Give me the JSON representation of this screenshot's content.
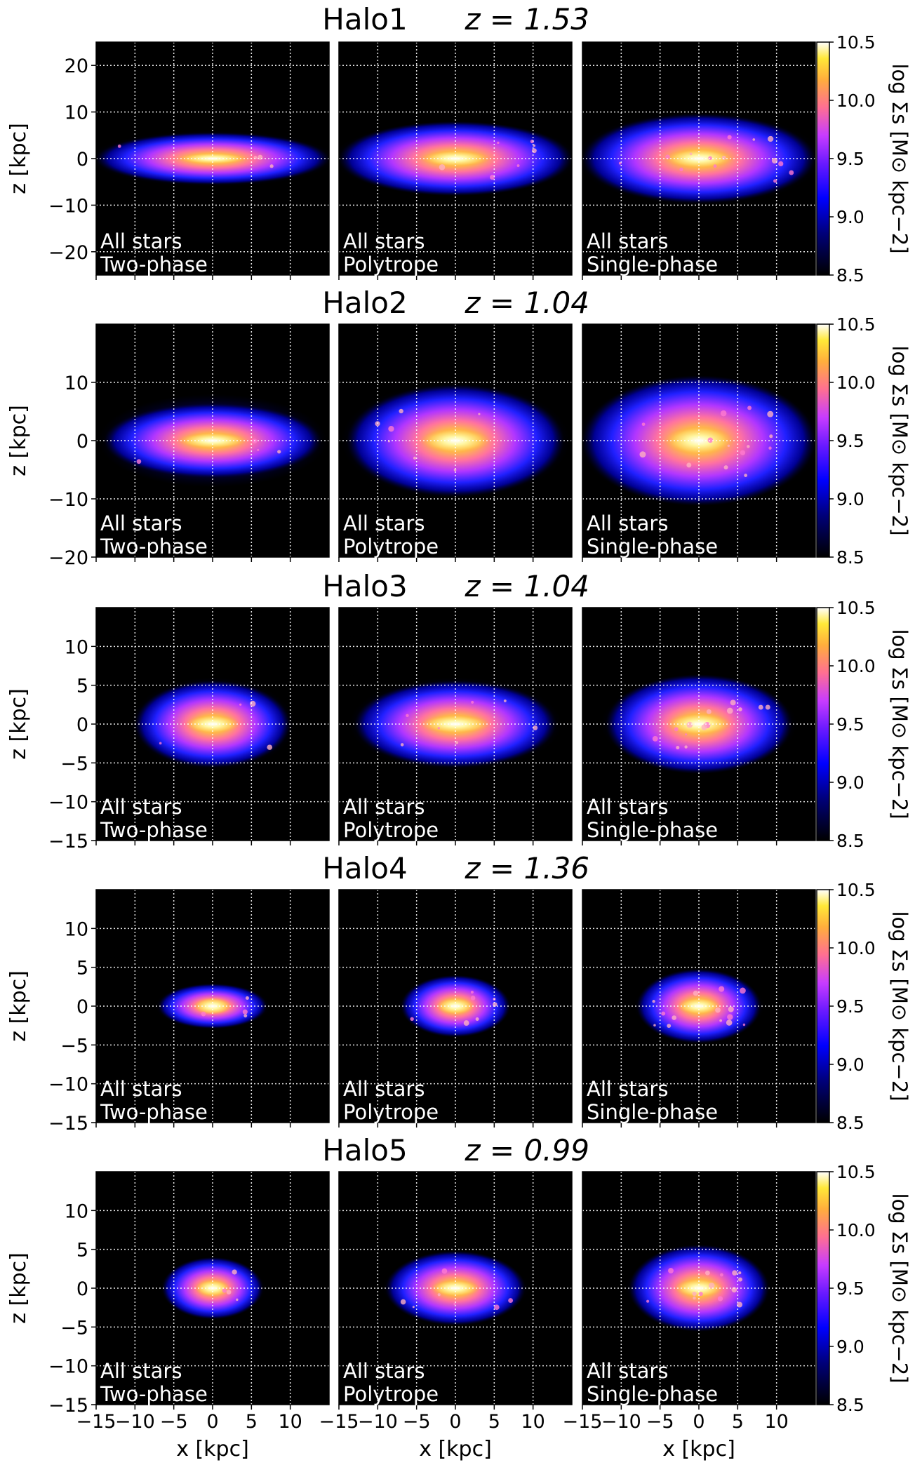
{
  "figure": {
    "colorbar": {
      "label": "log Σs [M⊙ kpc−2]",
      "ticks": [
        "8.5",
        "9.0",
        "9.5",
        "10.0",
        "10.5"
      ],
      "range": [
        8.5,
        10.5
      ],
      "colormap": "gnuplot2"
    },
    "panel_labels": {
      "line1": "All stars",
      "line2": [
        "Two-phase",
        "Polytrope",
        "Single-phase"
      ]
    }
  },
  "chart_data": [
    {
      "type": "heatmap",
      "title": "Halo1",
      "redshift": "z = 1.53",
      "panels": [
        "Two-phase",
        "Polytrope",
        "Single-phase"
      ],
      "xlabel": "",
      "ylabel": "z [kpc]",
      "xlim": [
        -15,
        15
      ],
      "ylim": [
        -25,
        25
      ],
      "yticks": [
        20,
        10,
        0,
        -10,
        -20
      ],
      "grid": true,
      "disk": [
        {
          "radius": 15,
          "thickness": 3.5,
          "halo": 6,
          "peak": 10.5
        },
        {
          "radius": 15,
          "thickness": 5,
          "halo": 8,
          "peak": 10.3
        },
        {
          "radius": 15,
          "thickness": 6,
          "halo": 10,
          "peak": 10.3
        }
      ]
    },
    {
      "type": "heatmap",
      "title": "Halo2",
      "redshift": "z = 1.04",
      "panels": [
        "Two-phase",
        "Polytrope",
        "Single-phase"
      ],
      "xlabel": "",
      "ylabel": "z [kpc]",
      "xlim": [
        -15,
        15
      ],
      "ylim": [
        -20,
        20
      ],
      "yticks": [
        10,
        0,
        -10,
        -20
      ],
      "grid": true,
      "disk": [
        {
          "radius": 14,
          "thickness": 4,
          "halo": 8,
          "peak": 10.5
        },
        {
          "radius": 14,
          "thickness": 6,
          "halo": 10,
          "peak": 10.4
        },
        {
          "radius": 15,
          "thickness": 7,
          "halo": 11,
          "peak": 10.4
        }
      ]
    },
    {
      "type": "heatmap",
      "title": "Halo3",
      "redshift": "z = 1.04",
      "panels": [
        "Two-phase",
        "Polytrope",
        "Single-phase"
      ],
      "xlabel": "",
      "ylabel": "z [kpc]",
      "xlim": [
        -15,
        15
      ],
      "ylim": [
        -15,
        15
      ],
      "yticks": [
        10,
        5,
        0,
        -5,
        -10,
        -15
      ],
      "grid": true,
      "disk": [
        {
          "radius": 10,
          "thickness": 3.5,
          "halo": 6,
          "peak": 10.5
        },
        {
          "radius": 13,
          "thickness": 3.5,
          "halo": 6,
          "peak": 10.5
        },
        {
          "radius": 12,
          "thickness": 4,
          "halo": 6,
          "peak": 10.5
        }
      ]
    },
    {
      "type": "heatmap",
      "title": "Halo4",
      "redshift": "z = 1.36",
      "panels": [
        "Two-phase",
        "Polytrope",
        "Single-phase"
      ],
      "xlabel": "",
      "ylabel": "z [kpc]",
      "xlim": [
        -15,
        15
      ],
      "ylim": [
        -15,
        15
      ],
      "yticks": [
        10,
        5,
        0,
        -5,
        -10,
        -15
      ],
      "grid": true,
      "disk": [
        {
          "radius": 7,
          "thickness": 1.8,
          "halo": 3,
          "peak": 10.5
        },
        {
          "radius": 7,
          "thickness": 2.5,
          "halo": 3.5,
          "peak": 10.5
        },
        {
          "radius": 8,
          "thickness": 3,
          "halo": 4,
          "peak": 10.5
        }
      ]
    },
    {
      "type": "heatmap",
      "title": "Halo5",
      "redshift": "z = 0.99",
      "panels": [
        "Two-phase",
        "Polytrope",
        "Single-phase"
      ],
      "xlabel": "x [kpc]",
      "ylabel": "z [kpc]",
      "xlim": [
        -15,
        15
      ],
      "ylim": [
        -15,
        15
      ],
      "xticks": [
        -15,
        -10,
        -5,
        0,
        5,
        10
      ],
      "yticks": [
        10,
        5,
        0,
        -5,
        -10,
        -15
      ],
      "grid": true,
      "disk": [
        {
          "radius": 6.5,
          "thickness": 2.5,
          "halo": 3.5,
          "peak": 10.5
        },
        {
          "radius": 9,
          "thickness": 3,
          "halo": 4,
          "peak": 10.5
        },
        {
          "radius": 9,
          "thickness": 3.5,
          "halo": 4.5,
          "peak": 10.5
        }
      ]
    }
  ]
}
